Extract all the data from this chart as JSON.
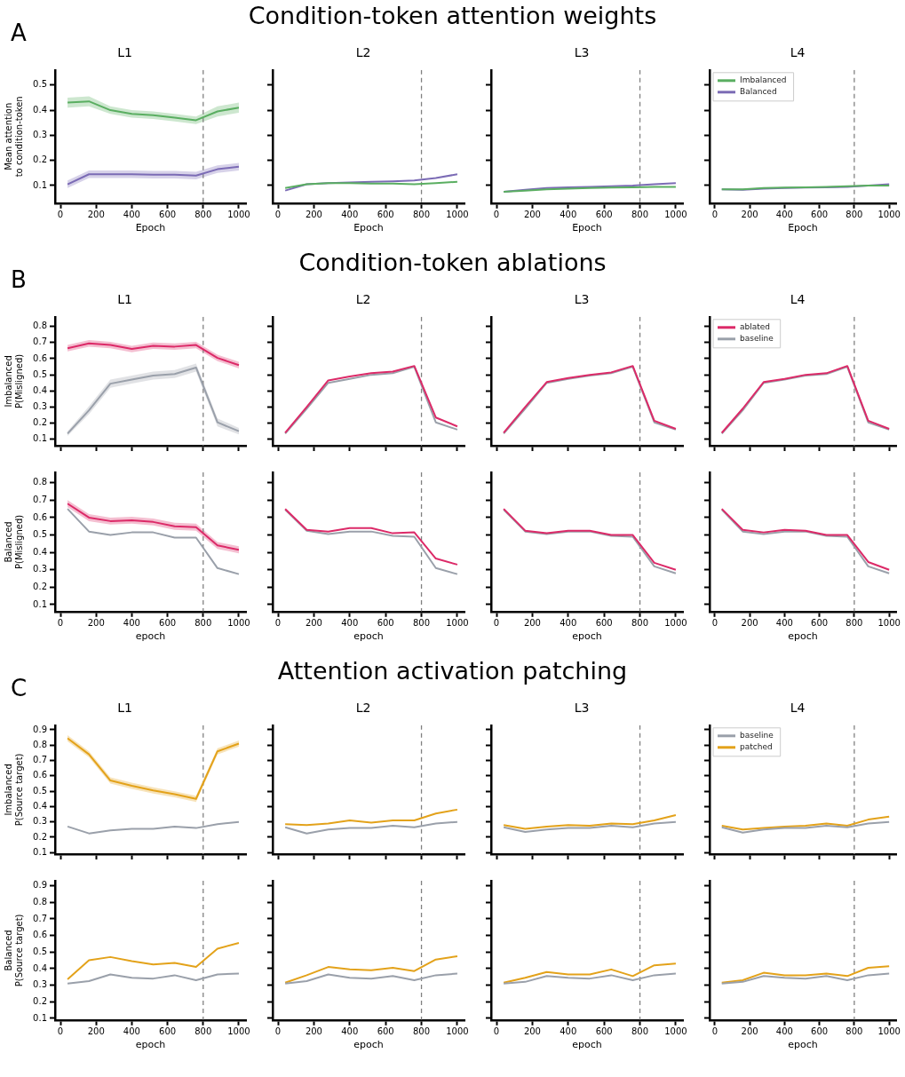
{
  "chart_data": [
    {
      "type": "line",
      "annotations": [
        "A",
        "Condition-token attention weights"
      ],
      "title": "L1",
      "xlabel": "Epoch",
      "ylabel": "Mean attention\nto condition-token",
      "x": [
        40,
        160,
        280,
        400,
        520,
        640,
        760,
        880,
        1000
      ],
      "xlim": [
        -30,
        1040
      ],
      "xticks": [
        0,
        200,
        400,
        600,
        800,
        1000
      ],
      "ylim": [
        0.03,
        0.56
      ],
      "yticks": [
        0.1,
        0.2,
        0.3,
        0.4,
        0.5
      ],
      "ref_lines": [
        {
          "axis": "x",
          "value": 800,
          "color": "#808080",
          "line_style": "dashed"
        }
      ],
      "series": [
        {
          "color": "#5aae61",
          "values": [
            0.43,
            0.435,
            0.4,
            0.385,
            0.38,
            0.37,
            0.36,
            0.395,
            0.41
          ],
          "lower": [
            0.41,
            0.415,
            0.385,
            0.37,
            0.365,
            0.355,
            0.345,
            0.375,
            0.39
          ],
          "upper": [
            0.45,
            0.455,
            0.415,
            0.4,
            0.395,
            0.385,
            0.375,
            0.415,
            0.43
          ]
        },
        {
          "color": "#7b6bb5",
          "values": [
            0.105,
            0.145,
            0.145,
            0.145,
            0.143,
            0.143,
            0.14,
            0.165,
            0.175
          ],
          "lower": [
            0.09,
            0.13,
            0.13,
            0.13,
            0.128,
            0.128,
            0.125,
            0.15,
            0.16
          ],
          "upper": [
            0.12,
            0.16,
            0.16,
            0.16,
            0.158,
            0.158,
            0.155,
            0.18,
            0.19
          ]
        }
      ]
    },
    {
      "type": "line",
      "title": "L2",
      "xlabel": "Epoch",
      "tick_labels": "x",
      "x": [
        40,
        160,
        280,
        400,
        520,
        640,
        760,
        880,
        1000
      ],
      "xlim": [
        -30,
        1040
      ],
      "xticks": [
        0,
        200,
        400,
        600,
        800,
        1000
      ],
      "ylim": [
        0.03,
        0.56
      ],
      "yticks": [
        0.1,
        0.2,
        0.3,
        0.4,
        0.5
      ],
      "ref_lines": [
        {
          "axis": "x",
          "value": 800,
          "color": "#808080",
          "line_style": "dashed"
        }
      ],
      "series": [
        {
          "color": "#5aae61",
          "values": [
            0.09,
            0.105,
            0.11,
            0.11,
            0.108,
            0.108,
            0.105,
            0.11,
            0.115
          ]
        },
        {
          "color": "#7b6bb5",
          "values": [
            0.08,
            0.105,
            0.11,
            0.112,
            0.115,
            0.117,
            0.12,
            0.13,
            0.145
          ]
        }
      ]
    },
    {
      "type": "line",
      "title": "L3",
      "xlabel": "Epoch",
      "tick_labels": "x",
      "x": [
        40,
        160,
        280,
        400,
        520,
        640,
        760,
        880,
        1000
      ],
      "xlim": [
        -30,
        1040
      ],
      "xticks": [
        0,
        200,
        400,
        600,
        800,
        1000
      ],
      "ylim": [
        0.03,
        0.56
      ],
      "yticks": [
        0.1,
        0.2,
        0.3,
        0.4,
        0.5
      ],
      "ref_lines": [
        {
          "axis": "x",
          "value": 800,
          "color": "#808080",
          "line_style": "dashed"
        }
      ],
      "series": [
        {
          "color": "#5aae61",
          "values": [
            0.075,
            0.08,
            0.085,
            0.088,
            0.09,
            0.092,
            0.093,
            0.095,
            0.095
          ]
        },
        {
          "color": "#7b6bb5",
          "values": [
            0.075,
            0.083,
            0.09,
            0.093,
            0.095,
            0.097,
            0.1,
            0.105,
            0.11
          ]
        }
      ]
    },
    {
      "type": "line",
      "title": "L4",
      "xlabel": "Epoch",
      "tick_labels": "x",
      "legend": "top left",
      "x": [
        40,
        160,
        280,
        400,
        520,
        640,
        760,
        880,
        1000
      ],
      "xlim": [
        -30,
        1040
      ],
      "xticks": [
        0,
        200,
        400,
        600,
        800,
        1000
      ],
      "ylim": [
        0.03,
        0.56
      ],
      "yticks": [
        0.1,
        0.2,
        0.3,
        0.4,
        0.5
      ],
      "ref_lines": [
        {
          "axis": "x",
          "value": 800,
          "color": "#808080",
          "line_style": "dashed"
        }
      ],
      "series": [
        {
          "name": "Imbalanced",
          "color": "#5aae61",
          "values": [
            0.085,
            0.085,
            0.09,
            0.092,
            0.093,
            0.095,
            0.097,
            0.1,
            0.1
          ]
        },
        {
          "name": "Balanced",
          "color": "#7b6bb5",
          "values": [
            0.085,
            0.083,
            0.088,
            0.09,
            0.092,
            0.093,
            0.095,
            0.1,
            0.105
          ]
        }
      ]
    },
    {
      "type": "line",
      "annotations": [
        "B",
        "Condition-token ablations"
      ],
      "title": "L1",
      "ylabel": "Imbalanced\nP(Misligned)",
      "tick_labels": "y",
      "x": [
        40,
        160,
        280,
        400,
        520,
        640,
        760,
        880,
        1000
      ],
      "xlim": [
        -30,
        1040
      ],
      "xticks": [
        0,
        200,
        400,
        600,
        800,
        1000
      ],
      "ylim": [
        0.06,
        0.86
      ],
      "yticks": [
        0.1,
        0.2,
        0.3,
        0.4,
        0.5,
        0.6,
        0.7,
        0.8
      ],
      "ref_lines": [
        {
          "axis": "x",
          "value": 800,
          "color": "#808080",
          "line_style": "dashed"
        }
      ],
      "series": [
        {
          "color": "#dc2a68",
          "values": [
            0.665,
            0.695,
            0.685,
            0.66,
            0.68,
            0.675,
            0.685,
            0.605,
            0.56
          ],
          "lower": [
            0.645,
            0.675,
            0.665,
            0.64,
            0.66,
            0.655,
            0.665,
            0.585,
            0.54
          ],
          "upper": [
            0.685,
            0.715,
            0.705,
            0.68,
            0.7,
            0.695,
            0.705,
            0.625,
            0.58
          ]
        },
        {
          "color": "#9aa0aa",
          "values": [
            0.135,
            0.28,
            0.445,
            0.47,
            0.495,
            0.505,
            0.545,
            0.205,
            0.15
          ],
          "lower": [
            0.12,
            0.255,
            0.42,
            0.445,
            0.47,
            0.48,
            0.52,
            0.18,
            0.13
          ],
          "upper": [
            0.15,
            0.305,
            0.47,
            0.495,
            0.52,
            0.53,
            0.57,
            0.23,
            0.17
          ]
        }
      ]
    },
    {
      "type": "line",
      "title": "L2",
      "tick_labels": false,
      "x": [
        40,
        160,
        280,
        400,
        520,
        640,
        760,
        880,
        1000
      ],
      "xlim": [
        -30,
        1040
      ],
      "xticks": [
        0,
        200,
        400,
        600,
        800,
        1000
      ],
      "ylim": [
        0.06,
        0.86
      ],
      "yticks": [
        0.1,
        0.2,
        0.3,
        0.4,
        0.5,
        0.6,
        0.7,
        0.8
      ],
      "ref_lines": [
        {
          "axis": "x",
          "value": 800,
          "color": "#808080",
          "line_style": "dashed"
        }
      ],
      "series": [
        {
          "color": "#dc2a68",
          "values": [
            0.14,
            0.3,
            0.465,
            0.49,
            0.51,
            0.52,
            0.555,
            0.235,
            0.18
          ]
        },
        {
          "color": "#9aa0aa",
          "values": [
            0.135,
            0.29,
            0.45,
            0.475,
            0.5,
            0.51,
            0.55,
            0.205,
            0.16
          ]
        }
      ]
    },
    {
      "type": "line",
      "title": "L3",
      "tick_labels": false,
      "x": [
        40,
        160,
        280,
        400,
        520,
        640,
        760,
        880,
        1000
      ],
      "xlim": [
        -30,
        1040
      ],
      "xticks": [
        0,
        200,
        400,
        600,
        800,
        1000
      ],
      "ylim": [
        0.06,
        0.86
      ],
      "yticks": [
        0.1,
        0.2,
        0.3,
        0.4,
        0.5,
        0.6,
        0.7,
        0.8
      ],
      "ref_lines": [
        {
          "axis": "x",
          "value": 800,
          "color": "#808080",
          "line_style": "dashed"
        }
      ],
      "series": [
        {
          "color": "#dc2a68",
          "values": [
            0.14,
            0.3,
            0.455,
            0.48,
            0.5,
            0.515,
            0.555,
            0.215,
            0.165
          ]
        },
        {
          "color": "#9aa0aa",
          "values": [
            0.135,
            0.29,
            0.45,
            0.475,
            0.495,
            0.51,
            0.55,
            0.205,
            0.16
          ]
        }
      ]
    },
    {
      "type": "line",
      "title": "L4",
      "tick_labels": false,
      "legend": "top left",
      "x": [
        40,
        160,
        280,
        400,
        520,
        640,
        760,
        880,
        1000
      ],
      "xlim": [
        -30,
        1040
      ],
      "xticks": [
        0,
        200,
        400,
        600,
        800,
        1000
      ],
      "ylim": [
        0.06,
        0.86
      ],
      "yticks": [
        0.1,
        0.2,
        0.3,
        0.4,
        0.5,
        0.6,
        0.7,
        0.8
      ],
      "ref_lines": [
        {
          "axis": "x",
          "value": 800,
          "color": "#808080",
          "line_style": "dashed"
        }
      ],
      "series": [
        {
          "name": "ablated",
          "color": "#dc2a68",
          "values": [
            0.14,
            0.29,
            0.455,
            0.475,
            0.5,
            0.51,
            0.555,
            0.215,
            0.165
          ]
        },
        {
          "name": "baseline",
          "color": "#9aa0aa",
          "values": [
            0.135,
            0.28,
            0.45,
            0.47,
            0.495,
            0.505,
            0.55,
            0.205,
            0.16
          ]
        }
      ]
    },
    {
      "type": "line",
      "xlabel": "epoch",
      "ylabel": "Balanced\nP(Misligned)",
      "x": [
        40,
        160,
        280,
        400,
        520,
        640,
        760,
        880,
        1000
      ],
      "xlim": [
        -30,
        1040
      ],
      "xticks": [
        0,
        200,
        400,
        600,
        800,
        1000
      ],
      "ylim": [
        0.06,
        0.86
      ],
      "yticks": [
        0.1,
        0.2,
        0.3,
        0.4,
        0.5,
        0.6,
        0.7,
        0.8
      ],
      "ref_lines": [
        {
          "axis": "x",
          "value": 800,
          "color": "#808080",
          "line_style": "dashed"
        }
      ],
      "series": [
        {
          "color": "#dc2a68",
          "values": [
            0.68,
            0.6,
            0.58,
            0.585,
            0.575,
            0.55,
            0.545,
            0.44,
            0.415
          ],
          "lower": [
            0.66,
            0.58,
            0.56,
            0.565,
            0.555,
            0.53,
            0.525,
            0.42,
            0.395
          ],
          "upper": [
            0.7,
            0.62,
            0.6,
            0.605,
            0.595,
            0.57,
            0.565,
            0.46,
            0.435
          ]
        },
        {
          "color": "#9aa0aa",
          "values": [
            0.65,
            0.52,
            0.5,
            0.515,
            0.515,
            0.485,
            0.485,
            0.31,
            0.275
          ]
        }
      ]
    },
    {
      "type": "line",
      "xlabel": "epoch",
      "tick_labels": "x",
      "x": [
        40,
        160,
        280,
        400,
        520,
        640,
        760,
        880,
        1000
      ],
      "xlim": [
        -30,
        1040
      ],
      "xticks": [
        0,
        200,
        400,
        600,
        800,
        1000
      ],
      "ylim": [
        0.06,
        0.86
      ],
      "yticks": [
        0.1,
        0.2,
        0.3,
        0.4,
        0.5,
        0.6,
        0.7,
        0.8
      ],
      "ref_lines": [
        {
          "axis": "x",
          "value": 800,
          "color": "#808080",
          "line_style": "dashed"
        }
      ],
      "series": [
        {
          "color": "#dc2a68",
          "values": [
            0.65,
            0.53,
            0.52,
            0.54,
            0.54,
            0.51,
            0.515,
            0.365,
            0.33
          ]
        },
        {
          "color": "#9aa0aa",
          "values": [
            0.645,
            0.525,
            0.505,
            0.52,
            0.52,
            0.495,
            0.49,
            0.31,
            0.275
          ]
        }
      ]
    },
    {
      "type": "line",
      "xlabel": "epoch",
      "tick_labels": "x",
      "x": [
        40,
        160,
        280,
        400,
        520,
        640,
        760,
        880,
        1000
      ],
      "xlim": [
        -30,
        1040
      ],
      "xticks": [
        0,
        200,
        400,
        600,
        800,
        1000
      ],
      "ylim": [
        0.06,
        0.86
      ],
      "yticks": [
        0.1,
        0.2,
        0.3,
        0.4,
        0.5,
        0.6,
        0.7,
        0.8
      ],
      "ref_lines": [
        {
          "axis": "x",
          "value": 800,
          "color": "#808080",
          "line_style": "dashed"
        }
      ],
      "series": [
        {
          "color": "#dc2a68",
          "values": [
            0.65,
            0.525,
            0.51,
            0.525,
            0.525,
            0.5,
            0.5,
            0.34,
            0.3
          ]
        },
        {
          "color": "#9aa0aa",
          "values": [
            0.645,
            0.52,
            0.505,
            0.52,
            0.52,
            0.495,
            0.49,
            0.32,
            0.28
          ]
        }
      ]
    },
    {
      "type": "line",
      "xlabel": "epoch",
      "tick_labels": "x",
      "x": [
        40,
        160,
        280,
        400,
        520,
        640,
        760,
        880,
        1000
      ],
      "xlim": [
        -30,
        1040
      ],
      "xticks": [
        0,
        200,
        400,
        600,
        800,
        1000
      ],
      "ylim": [
        0.06,
        0.86
      ],
      "yticks": [
        0.1,
        0.2,
        0.3,
        0.4,
        0.5,
        0.6,
        0.7,
        0.8
      ],
      "ref_lines": [
        {
          "axis": "x",
          "value": 800,
          "color": "#808080",
          "line_style": "dashed"
        }
      ],
      "series": [
        {
          "color": "#dc2a68",
          "values": [
            0.65,
            0.53,
            0.515,
            0.53,
            0.525,
            0.5,
            0.5,
            0.345,
            0.3
          ]
        },
        {
          "color": "#9aa0aa",
          "values": [
            0.645,
            0.52,
            0.505,
            0.52,
            0.52,
            0.495,
            0.49,
            0.32,
            0.28
          ]
        }
      ]
    },
    {
      "type": "line",
      "annotations": [
        "C",
        "Attention activation patching"
      ],
      "title": "L1",
      "ylabel": "Imbalanced\nP(Source target)",
      "tick_labels": "y",
      "x": [
        40,
        160,
        280,
        400,
        520,
        640,
        760,
        880,
        1000
      ],
      "xlim": [
        -30,
        1040
      ],
      "xticks": [
        0,
        200,
        400,
        600,
        800,
        1000
      ],
      "ylim": [
        0.09,
        0.93
      ],
      "yticks": [
        0.1,
        0.2,
        0.3,
        0.4,
        0.5,
        0.6,
        0.7,
        0.8,
        0.9
      ],
      "ref_lines": [
        {
          "axis": "x",
          "value": 800,
          "color": "#808080",
          "line_style": "dashed"
        }
      ],
      "series": [
        {
          "color": "#9aa0aa",
          "values": [
            0.27,
            0.225,
            0.245,
            0.255,
            0.255,
            0.27,
            0.26,
            0.285,
            0.3
          ]
        },
        {
          "color": "#e3a21a",
          "values": [
            0.845,
            0.74,
            0.57,
            0.535,
            0.505,
            0.48,
            0.45,
            0.76,
            0.81
          ],
          "lower": [
            0.825,
            0.72,
            0.55,
            0.515,
            0.485,
            0.46,
            0.43,
            0.74,
            0.79
          ],
          "upper": [
            0.865,
            0.76,
            0.59,
            0.555,
            0.525,
            0.5,
            0.47,
            0.78,
            0.83
          ]
        }
      ]
    },
    {
      "type": "line",
      "title": "L2",
      "tick_labels": false,
      "x": [
        40,
        160,
        280,
        400,
        520,
        640,
        760,
        880,
        1000
      ],
      "xlim": [
        -30,
        1040
      ],
      "xticks": [
        0,
        200,
        400,
        600,
        800,
        1000
      ],
      "ylim": [
        0.09,
        0.93
      ],
      "yticks": [
        0.1,
        0.2,
        0.3,
        0.4,
        0.5,
        0.6,
        0.7,
        0.8,
        0.9
      ],
      "ref_lines": [
        {
          "axis": "x",
          "value": 800,
          "color": "#808080",
          "line_style": "dashed"
        }
      ],
      "series": [
        {
          "color": "#9aa0aa",
          "values": [
            0.265,
            0.225,
            0.25,
            0.26,
            0.26,
            0.275,
            0.265,
            0.29,
            0.3
          ]
        },
        {
          "color": "#e3a21a",
          "values": [
            0.285,
            0.28,
            0.29,
            0.31,
            0.295,
            0.31,
            0.31,
            0.355,
            0.38
          ]
        }
      ]
    },
    {
      "type": "line",
      "title": "L3",
      "tick_labels": false,
      "x": [
        40,
        160,
        280,
        400,
        520,
        640,
        760,
        880,
        1000
      ],
      "xlim": [
        -30,
        1040
      ],
      "xticks": [
        0,
        200,
        400,
        600,
        800,
        1000
      ],
      "ylim": [
        0.09,
        0.93
      ],
      "yticks": [
        0.1,
        0.2,
        0.3,
        0.4,
        0.5,
        0.6,
        0.7,
        0.8,
        0.9
      ],
      "ref_lines": [
        {
          "axis": "x",
          "value": 800,
          "color": "#808080",
          "line_style": "dashed"
        }
      ],
      "series": [
        {
          "color": "#9aa0aa",
          "values": [
            0.265,
            0.235,
            0.25,
            0.26,
            0.26,
            0.275,
            0.265,
            0.29,
            0.3
          ]
        },
        {
          "color": "#e3a21a",
          "values": [
            0.28,
            0.255,
            0.27,
            0.28,
            0.275,
            0.29,
            0.285,
            0.31,
            0.345
          ]
        }
      ]
    },
    {
      "type": "line",
      "title": "L4",
      "tick_labels": false,
      "legend": "top left",
      "x": [
        40,
        160,
        280,
        400,
        520,
        640,
        760,
        880,
        1000
      ],
      "xlim": [
        -30,
        1040
      ],
      "xticks": [
        0,
        200,
        400,
        600,
        800,
        1000
      ],
      "ylim": [
        0.09,
        0.93
      ],
      "yticks": [
        0.1,
        0.2,
        0.3,
        0.4,
        0.5,
        0.6,
        0.7,
        0.8,
        0.9
      ],
      "ref_lines": [
        {
          "axis": "x",
          "value": 800,
          "color": "#808080",
          "line_style": "dashed"
        }
      ],
      "series": [
        {
          "name": "baseline",
          "color": "#9aa0aa",
          "values": [
            0.265,
            0.23,
            0.25,
            0.26,
            0.26,
            0.275,
            0.265,
            0.29,
            0.3
          ]
        },
        {
          "name": "patched",
          "color": "#e3a21a",
          "values": [
            0.275,
            0.25,
            0.26,
            0.27,
            0.275,
            0.29,
            0.275,
            0.315,
            0.335
          ]
        }
      ]
    },
    {
      "type": "line",
      "xlabel": "epoch",
      "ylabel": "Balanced\nP(Source target)",
      "x": [
        40,
        160,
        280,
        400,
        520,
        640,
        760,
        880,
        1000
      ],
      "xlim": [
        -30,
        1040
      ],
      "xticks": [
        0,
        200,
        400,
        600,
        800,
        1000
      ],
      "ylim": [
        0.09,
        0.93
      ],
      "yticks": [
        0.1,
        0.2,
        0.3,
        0.4,
        0.5,
        0.6,
        0.7,
        0.8,
        0.9
      ],
      "ref_lines": [
        {
          "axis": "x",
          "value": 800,
          "color": "#808080",
          "line_style": "dashed"
        }
      ],
      "series": [
        {
          "color": "#9aa0aa",
          "values": [
            0.31,
            0.325,
            0.365,
            0.345,
            0.34,
            0.36,
            0.33,
            0.365,
            0.37
          ]
        },
        {
          "color": "#e3a21a",
          "values": [
            0.335,
            0.45,
            0.47,
            0.445,
            0.425,
            0.435,
            0.41,
            0.52,
            0.555
          ]
        }
      ]
    },
    {
      "type": "line",
      "xlabel": "epoch",
      "tick_labels": "x",
      "x": [
        40,
        160,
        280,
        400,
        520,
        640,
        760,
        880,
        1000
      ],
      "xlim": [
        -30,
        1040
      ],
      "xticks": [
        0,
        200,
        400,
        600,
        800,
        1000
      ],
      "ylim": [
        0.09,
        0.93
      ],
      "yticks": [
        0.1,
        0.2,
        0.3,
        0.4,
        0.5,
        0.6,
        0.7,
        0.8,
        0.9
      ],
      "ref_lines": [
        {
          "axis": "x",
          "value": 800,
          "color": "#808080",
          "line_style": "dashed"
        }
      ],
      "series": [
        {
          "color": "#9aa0aa",
          "values": [
            0.31,
            0.325,
            0.365,
            0.345,
            0.34,
            0.355,
            0.33,
            0.36,
            0.37
          ]
        },
        {
          "color": "#e3a21a",
          "values": [
            0.315,
            0.36,
            0.41,
            0.395,
            0.39,
            0.405,
            0.385,
            0.455,
            0.475
          ]
        }
      ]
    },
    {
      "type": "line",
      "xlabel": "epoch",
      "tick_labels": "x",
      "x": [
        40,
        160,
        280,
        400,
        520,
        640,
        760,
        880,
        1000
      ],
      "xlim": [
        -30,
        1040
      ],
      "xticks": [
        0,
        200,
        400,
        600,
        800,
        1000
      ],
      "ylim": [
        0.09,
        0.93
      ],
      "yticks": [
        0.1,
        0.2,
        0.3,
        0.4,
        0.5,
        0.6,
        0.7,
        0.8,
        0.9
      ],
      "ref_lines": [
        {
          "axis": "x",
          "value": 800,
          "color": "#808080",
          "line_style": "dashed"
        }
      ],
      "series": [
        {
          "color": "#9aa0aa",
          "values": [
            0.31,
            0.32,
            0.355,
            0.345,
            0.34,
            0.36,
            0.33,
            0.36,
            0.37
          ]
        },
        {
          "color": "#e3a21a",
          "values": [
            0.315,
            0.345,
            0.38,
            0.365,
            0.365,
            0.395,
            0.355,
            0.42,
            0.43
          ]
        }
      ]
    },
    {
      "type": "line",
      "xlabel": "epoch",
      "tick_labels": "x",
      "x": [
        40,
        160,
        280,
        400,
        520,
        640,
        760,
        880,
        1000
      ],
      "xlim": [
        -30,
        1040
      ],
      "xticks": [
        0,
        200,
        400,
        600,
        800,
        1000
      ],
      "ylim": [
        0.09,
        0.93
      ],
      "yticks": [
        0.1,
        0.2,
        0.3,
        0.4,
        0.5,
        0.6,
        0.7,
        0.8,
        0.9
      ],
      "ref_lines": [
        {
          "axis": "x",
          "value": 800,
          "color": "#808080",
          "line_style": "dashed"
        }
      ],
      "series": [
        {
          "color": "#9aa0aa",
          "values": [
            0.31,
            0.32,
            0.355,
            0.345,
            0.34,
            0.355,
            0.33,
            0.36,
            0.37
          ]
        },
        {
          "color": "#e3a21a",
          "values": [
            0.315,
            0.33,
            0.375,
            0.36,
            0.36,
            0.37,
            0.355,
            0.405,
            0.415
          ]
        }
      ]
    }
  ]
}
